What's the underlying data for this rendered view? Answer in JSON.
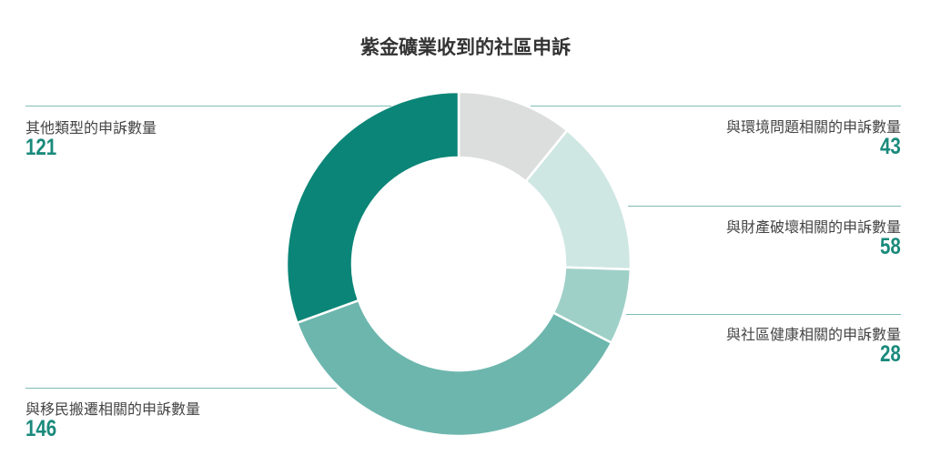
{
  "chart_data": {
    "type": "pie",
    "donut": true,
    "title": "紫金礦業收到的社區申訴",
    "categories": [
      "與環境問題相關的申訴數量",
      "與財產破壞相關的申訴數量",
      "與社區健康相關的申訴數量",
      "與移民搬遷相關的申訴數量",
      "其他類型的申訴數量"
    ],
    "values": [
      43,
      58,
      28,
      146,
      121
    ],
    "colors": [
      "#dcdddd",
      "#cfe7e3",
      "#9fd0c8",
      "#6db6ae",
      "#0b8577"
    ],
    "start": "top",
    "direction": "clockwise"
  }
}
